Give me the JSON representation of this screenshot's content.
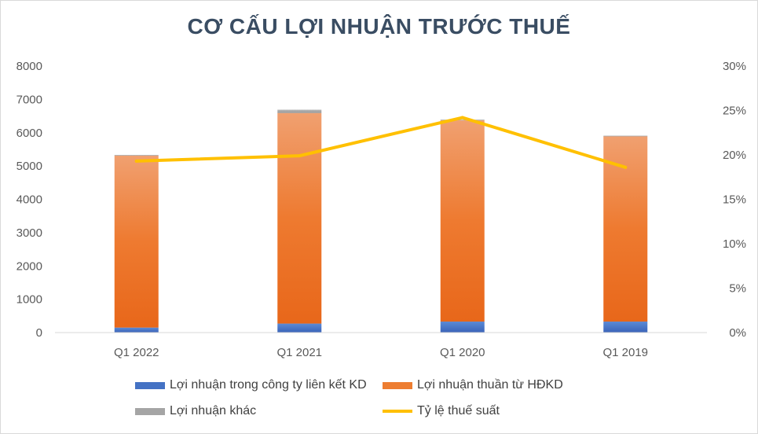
{
  "chart_data": {
    "type": "bar",
    "title": "CƠ CẤU LỢI NHUẬN TRƯỚC THUẾ",
    "categories": [
      "Q1 2022",
      "Q1 2021",
      "Q1 2020",
      "Q1 2019"
    ],
    "stacked": true,
    "series": [
      {
        "name": "Lợi nhuận trong công ty liên kết KD",
        "type": "bar",
        "axis": "left",
        "color": "#4472c4",
        "values": [
          150,
          270,
          330,
          330
        ]
      },
      {
        "name": "Lợi nhuận thuần từ HĐKD",
        "type": "bar",
        "axis": "left",
        "color": "#ed7d31",
        "values": [
          5160,
          6320,
          6040,
          5560
        ]
      },
      {
        "name": "Lợi nhuận khác",
        "type": "bar",
        "axis": "left",
        "color": "#a5a5a5",
        "values": [
          20,
          100,
          20,
          20
        ]
      },
      {
        "name": "Tỷ lệ thuế suất",
        "type": "line",
        "axis": "right",
        "color": "#ffc000",
        "values": [
          0.193,
          0.199,
          0.242,
          0.186
        ]
      }
    ],
    "y_left": {
      "ylim": [
        0,
        8000
      ],
      "ticks": [
        "0",
        "1000",
        "2000",
        "3000",
        "4000",
        "5000",
        "6000",
        "7000",
        "8000"
      ]
    },
    "y_right": {
      "ylim": [
        0,
        0.3
      ],
      "ticks": [
        "0%",
        "5%",
        "10%",
        "15%",
        "20%",
        "25%",
        "30%"
      ]
    },
    "grid": false,
    "legend": "bottom"
  }
}
